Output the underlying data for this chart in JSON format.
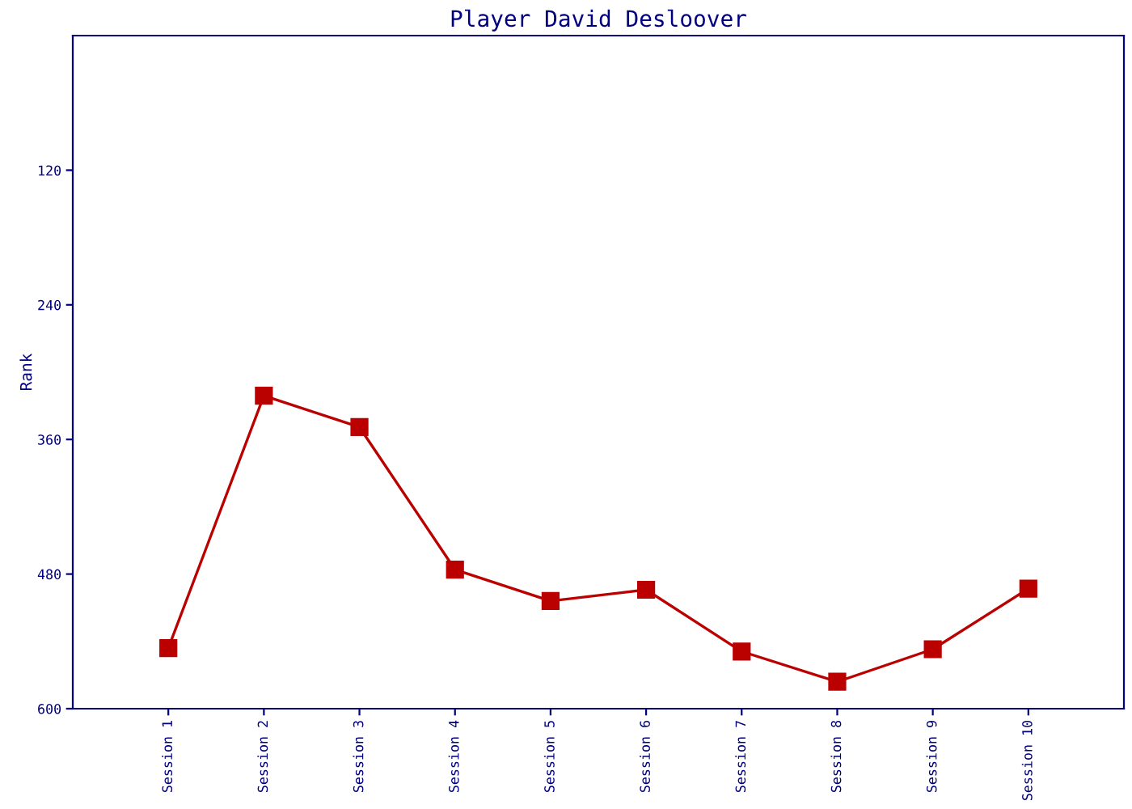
{
  "chart_data": {
    "type": "line",
    "title": "Player David Desloover",
    "ylabel": "Rank",
    "categories": [
      "Session 1",
      "Session 2",
      "Session 3",
      "Session 4",
      "Session 5",
      "Session 6",
      "Session 7",
      "Session 8",
      "Session 9",
      "Session 10"
    ],
    "series": [
      {
        "color": "#bb0000",
        "values": [
          546,
          321,
          349,
          476,
          504,
          494,
          549,
          576,
          547,
          493
        ]
      }
    ],
    "ylim": [
      600,
      0
    ],
    "yticks": [
      120,
      240,
      360,
      480,
      600
    ],
    "marker": "square",
    "line_style": "solid",
    "grid": false,
    "legend": false
  }
}
